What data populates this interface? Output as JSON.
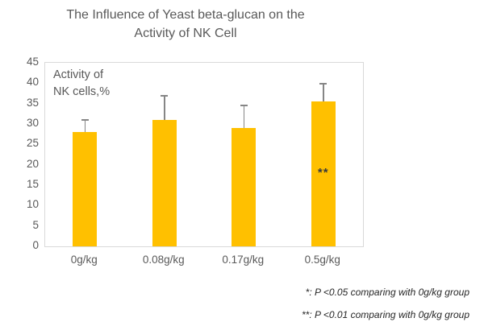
{
  "title_lines": [
    "The Influence of Yeast beta-glucan on the",
    "Activity of NK Cell"
  ],
  "chart_data": {
    "type": "bar",
    "title": "The Influence of Yeast beta-glucan on the Activity of NK Cell",
    "categories": [
      "0g/kg",
      "0.08g/kg",
      "0.17g/kg",
      "0.5g/kg"
    ],
    "values": [
      28,
      31,
      29,
      35.5
    ],
    "error_plus": [
      3,
      6,
      5.5,
      4.4
    ],
    "ylabel_inner": [
      "Activity of",
      "NK cells,%"
    ],
    "ylim": [
      0,
      45
    ],
    "yticks": [
      0,
      5,
      10,
      15,
      20,
      25,
      30,
      35,
      40,
      45
    ],
    "grid": false,
    "legend": "none",
    "bar_color": "#FFC000",
    "error_color": "#868686",
    "frame_color": "#d9d9d9",
    "text_color": "#595959",
    "annotations": [
      {
        "text": "**",
        "category_index": 3,
        "y": 18
      }
    ]
  },
  "footnotes": [
    "*: P <0.05 comparing with 0g/kg group",
    "**: P <0.01 comparing with 0g/kg group"
  ]
}
